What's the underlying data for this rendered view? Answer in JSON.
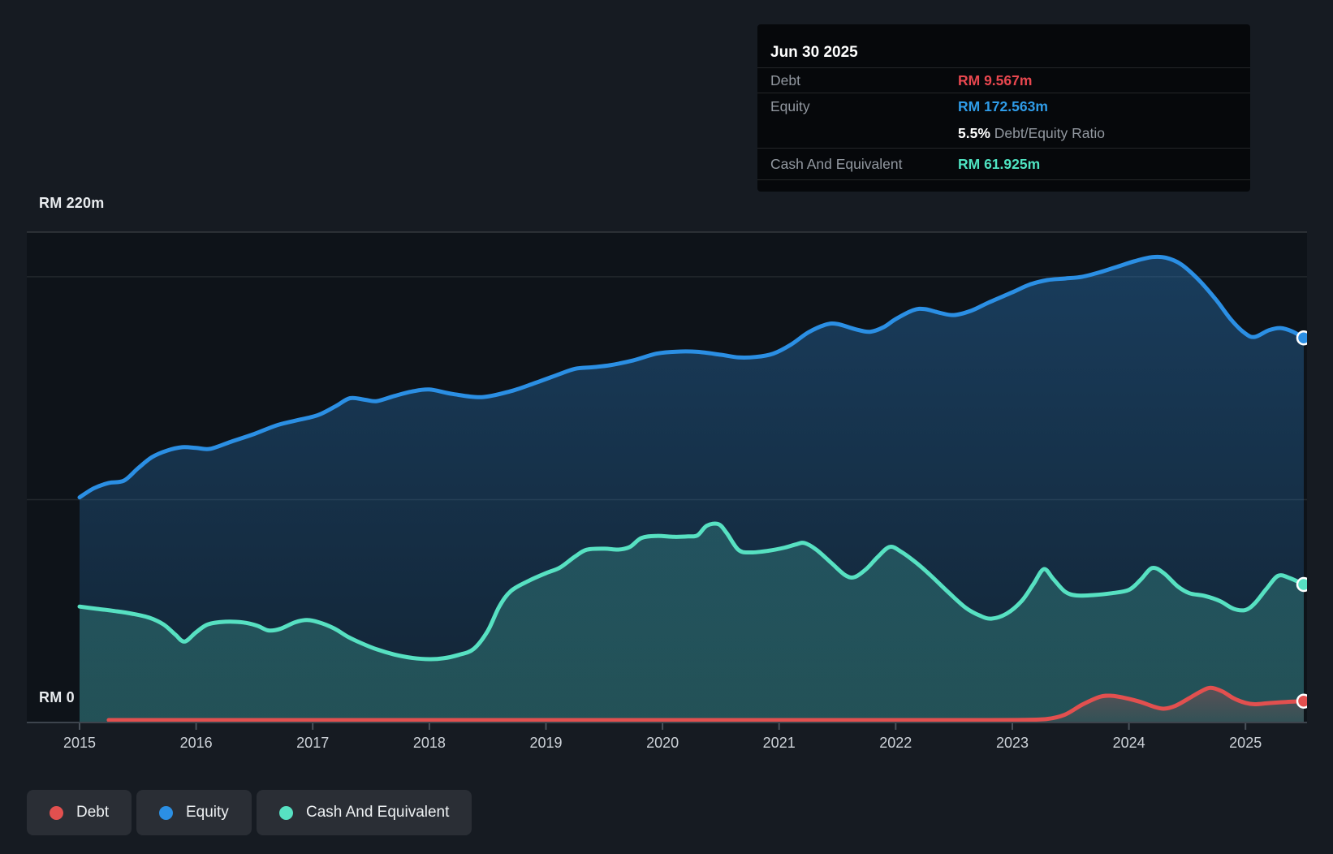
{
  "colors": {
    "background": "#161b22",
    "plot_background": "#0e1319",
    "debt": "#e2504f",
    "equity": "#2b8fe4",
    "cash": "#57e1c2",
    "debt_value_text": "#e8474f",
    "equity_value_text": "#2f9ce8",
    "cash_value_text": "#4fe3c1",
    "axis_line": "#3d444d",
    "tick": "#4a525b",
    "year_label": "#cdd2d8"
  },
  "tooltip": {
    "title": "Jun 30 2025",
    "rows": [
      {
        "label": "Debt",
        "value": "RM 9.567m"
      },
      {
        "label": "Equity",
        "value": "RM 172.563m"
      },
      {
        "label": "Cash And Equivalent",
        "value": "RM 61.925m"
      }
    ],
    "ratio": {
      "value": "5.5%",
      "label": " Debt/Equity Ratio"
    }
  },
  "legend": {
    "items": [
      {
        "label": "Debt"
      },
      {
        "label": "Equity"
      },
      {
        "label": "Cash And Equivalent"
      }
    ]
  },
  "chart_data": {
    "type": "area",
    "unit": "RM millions",
    "x_range": [
      2015,
      2025.5
    ],
    "y_range": [
      0,
      220
    ],
    "grid": true,
    "y_gridline_values": [
      220,
      200,
      100
    ],
    "y_axis_labels": [
      {
        "value": 220,
        "label": "RM 220m"
      },
      {
        "value": 0,
        "label": "RM 0"
      }
    ],
    "x_ticks": [
      2015,
      2016,
      2017,
      2018,
      2019,
      2020,
      2021,
      2022,
      2023,
      2024,
      2025
    ],
    "end_marker_date": "Jun 30 2025",
    "series": [
      {
        "name": "Equity",
        "color": "#2b8fe4",
        "fill_top": "rgba(42,125,196,0.40)",
        "fill_bottom": "rgba(42,125,196,0.16)",
        "end_value": 172.563,
        "points": [
          [
            2015.0,
            101
          ],
          [
            2015.12,
            105
          ],
          [
            2015.25,
            107.5
          ],
          [
            2015.38,
            108.5
          ],
          [
            2015.5,
            114
          ],
          [
            2015.62,
            119
          ],
          [
            2015.75,
            122
          ],
          [
            2015.88,
            123.5
          ],
          [
            2016.0,
            123.2
          ],
          [
            2016.12,
            122.8
          ],
          [
            2016.3,
            126
          ],
          [
            2016.5,
            129.5
          ],
          [
            2016.7,
            133.5
          ],
          [
            2016.9,
            136
          ],
          [
            2017.05,
            138
          ],
          [
            2017.2,
            142
          ],
          [
            2017.32,
            145.5
          ],
          [
            2017.45,
            144.8
          ],
          [
            2017.55,
            144.2
          ],
          [
            2017.7,
            146.5
          ],
          [
            2017.85,
            148.5
          ],
          [
            2018.0,
            149.4
          ],
          [
            2018.2,
            147.4
          ],
          [
            2018.45,
            146
          ],
          [
            2018.7,
            148.7
          ],
          [
            2018.9,
            152.2
          ],
          [
            2019.1,
            156
          ],
          [
            2019.25,
            158.7
          ],
          [
            2019.4,
            159.4
          ],
          [
            2019.55,
            160.3
          ],
          [
            2019.75,
            162.5
          ],
          [
            2019.95,
            165.5
          ],
          [
            2020.12,
            166.4
          ],
          [
            2020.3,
            166.3
          ],
          [
            2020.5,
            165
          ],
          [
            2020.65,
            163.8
          ],
          [
            2020.8,
            164
          ],
          [
            2020.95,
            165.5
          ],
          [
            2021.1,
            169.5
          ],
          [
            2021.25,
            175
          ],
          [
            2021.4,
            178.5
          ],
          [
            2021.5,
            178.8
          ],
          [
            2021.65,
            176.5
          ],
          [
            2021.78,
            175.3
          ],
          [
            2021.9,
            177.5
          ],
          [
            2022.0,
            181
          ],
          [
            2022.15,
            185
          ],
          [
            2022.25,
            185.5
          ],
          [
            2022.38,
            183.8
          ],
          [
            2022.5,
            182.8
          ],
          [
            2022.65,
            184.8
          ],
          [
            2022.8,
            188.5
          ],
          [
            2023.0,
            193
          ],
          [
            2023.15,
            196.5
          ],
          [
            2023.3,
            198.5
          ],
          [
            2023.45,
            199.2
          ],
          [
            2023.6,
            200
          ],
          [
            2023.75,
            202
          ],
          [
            2023.9,
            204.5
          ],
          [
            2024.05,
            207
          ],
          [
            2024.2,
            208.8
          ],
          [
            2024.32,
            208.5
          ],
          [
            2024.45,
            205.5
          ],
          [
            2024.6,
            198.5
          ],
          [
            2024.75,
            189.5
          ],
          [
            2024.88,
            180.5
          ],
          [
            2025.0,
            174.5
          ],
          [
            2025.08,
            173
          ],
          [
            2025.2,
            176
          ],
          [
            2025.3,
            177
          ],
          [
            2025.4,
            175.5
          ],
          [
            2025.5,
            172.563
          ]
        ]
      },
      {
        "name": "Cash And Equivalent",
        "color": "#57e1c2",
        "fill_top": "rgba(87,225,195,0.15)",
        "fill_bottom": "rgba(87,225,195,0.24)",
        "end_value": 61.925,
        "points": [
          [
            2015.0,
            52
          ],
          [
            2015.15,
            51
          ],
          [
            2015.3,
            50
          ],
          [
            2015.45,
            48.8
          ],
          [
            2015.6,
            47
          ],
          [
            2015.72,
            44
          ],
          [
            2015.82,
            39.5
          ],
          [
            2015.9,
            36.3
          ],
          [
            2016.0,
            40.5
          ],
          [
            2016.1,
            44
          ],
          [
            2016.25,
            45.2
          ],
          [
            2016.4,
            44.9
          ],
          [
            2016.52,
            43.5
          ],
          [
            2016.62,
            41.3
          ],
          [
            2016.72,
            42
          ],
          [
            2016.85,
            45
          ],
          [
            2016.95,
            46
          ],
          [
            2017.05,
            45
          ],
          [
            2017.18,
            42.3
          ],
          [
            2017.3,
            38.5
          ],
          [
            2017.42,
            35.5
          ],
          [
            2017.55,
            32.8
          ],
          [
            2017.7,
            30.5
          ],
          [
            2017.85,
            29
          ],
          [
            2018.0,
            28.4
          ],
          [
            2018.12,
            28.8
          ],
          [
            2018.25,
            30.3
          ],
          [
            2018.38,
            33
          ],
          [
            2018.5,
            41
          ],
          [
            2018.6,
            52
          ],
          [
            2018.7,
            59
          ],
          [
            2018.85,
            63.5
          ],
          [
            2019.0,
            67
          ],
          [
            2019.12,
            69.5
          ],
          [
            2019.25,
            74.5
          ],
          [
            2019.35,
            77.5
          ],
          [
            2019.5,
            78
          ],
          [
            2019.62,
            77.6
          ],
          [
            2019.72,
            78.8
          ],
          [
            2019.82,
            82.8
          ],
          [
            2019.95,
            83.7
          ],
          [
            2020.1,
            83.3
          ],
          [
            2020.22,
            83.5
          ],
          [
            2020.3,
            84
          ],
          [
            2020.38,
            88.3
          ],
          [
            2020.48,
            89
          ],
          [
            2020.55,
            85
          ],
          [
            2020.65,
            77.5
          ],
          [
            2020.75,
            76.3
          ],
          [
            2020.9,
            77
          ],
          [
            2021.05,
            78.5
          ],
          [
            2021.15,
            80
          ],
          [
            2021.22,
            80.5
          ],
          [
            2021.32,
            77.5
          ],
          [
            2021.45,
            71.5
          ],
          [
            2021.57,
            66
          ],
          [
            2021.65,
            65.3
          ],
          [
            2021.75,
            69
          ],
          [
            2021.85,
            74.5
          ],
          [
            2021.95,
            78.8
          ],
          [
            2022.05,
            76.5
          ],
          [
            2022.18,
            71.5
          ],
          [
            2022.3,
            66
          ],
          [
            2022.45,
            58.5
          ],
          [
            2022.6,
            51.5
          ],
          [
            2022.72,
            48
          ],
          [
            2022.82,
            46.6
          ],
          [
            2022.95,
            48.8
          ],
          [
            2023.08,
            54.5
          ],
          [
            2023.18,
            62
          ],
          [
            2023.27,
            68.8
          ],
          [
            2023.35,
            64.5
          ],
          [
            2023.45,
            58.8
          ],
          [
            2023.55,
            57
          ],
          [
            2023.7,
            57.2
          ],
          [
            2023.85,
            58
          ],
          [
            2024.0,
            59.5
          ],
          [
            2024.1,
            64
          ],
          [
            2024.2,
            69.3
          ],
          [
            2024.3,
            67
          ],
          [
            2024.42,
            61
          ],
          [
            2024.52,
            58
          ],
          [
            2024.65,
            56.8
          ],
          [
            2024.78,
            54.5
          ],
          [
            2024.9,
            51
          ],
          [
            2025.0,
            50.5
          ],
          [
            2025.08,
            53.5
          ],
          [
            2025.18,
            60
          ],
          [
            2025.28,
            65.8
          ],
          [
            2025.38,
            64.8
          ],
          [
            2025.5,
            61.925
          ]
        ]
      },
      {
        "name": "Debt",
        "color": "#e2504f",
        "fill_top": "rgba(224,80,82,0.35)",
        "fill_bottom": "rgba(224,80,82,0.08)",
        "end_value": 9.567,
        "points": [
          [
            2015.25,
            1.1
          ],
          [
            2016.0,
            1.1
          ],
          [
            2017.0,
            1.1
          ],
          [
            2018.0,
            1.1
          ],
          [
            2019.0,
            1.1
          ],
          [
            2020.0,
            1.1
          ],
          [
            2021.0,
            1.1
          ],
          [
            2022.0,
            1.1
          ],
          [
            2022.8,
            1.1
          ],
          [
            2023.1,
            1.2
          ],
          [
            2023.3,
            1.6
          ],
          [
            2023.45,
            3.5
          ],
          [
            2023.6,
            8
          ],
          [
            2023.75,
            11.5
          ],
          [
            2023.85,
            12
          ],
          [
            2023.95,
            11.2
          ],
          [
            2024.1,
            9.2
          ],
          [
            2024.22,
            7
          ],
          [
            2024.3,
            6.2
          ],
          [
            2024.4,
            7.5
          ],
          [
            2024.52,
            11
          ],
          [
            2024.62,
            14
          ],
          [
            2024.7,
            15.6
          ],
          [
            2024.8,
            14
          ],
          [
            2024.9,
            10.8
          ],
          [
            2025.0,
            8.8
          ],
          [
            2025.08,
            8.2
          ],
          [
            2025.2,
            8.7
          ],
          [
            2025.35,
            9.2
          ],
          [
            2025.5,
            9.567
          ]
        ]
      }
    ]
  }
}
